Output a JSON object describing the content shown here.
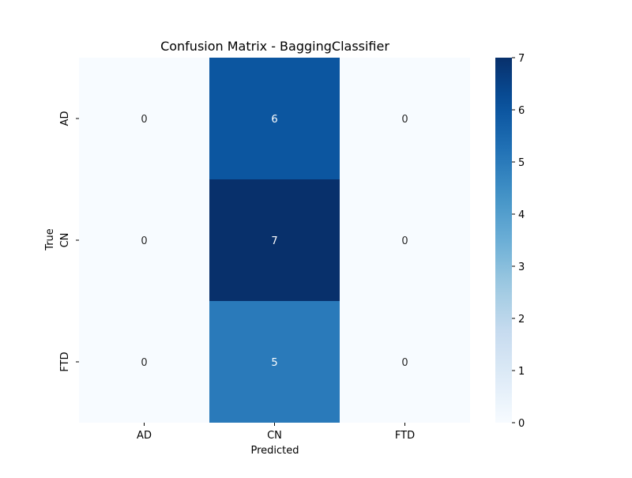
{
  "chart_data": {
    "type": "heatmap",
    "title": "Confusion Matrix - BaggingClassifier",
    "xlabel": "Predicted",
    "ylabel": "True",
    "x_categories": [
      "AD",
      "CN",
      "FTD"
    ],
    "y_categories": [
      "AD",
      "CN",
      "FTD"
    ],
    "values": [
      [
        0,
        6,
        0
      ],
      [
        0,
        7,
        0
      ],
      [
        0,
        5,
        0
      ]
    ],
    "colorbar": {
      "range": [
        0,
        7
      ],
      "ticks": [
        "0",
        "1",
        "2",
        "3",
        "4",
        "5",
        "6",
        "7"
      ]
    },
    "colormap": "Blues",
    "colors": {
      "low": "#f7fbff",
      "high": "#08306b"
    }
  }
}
